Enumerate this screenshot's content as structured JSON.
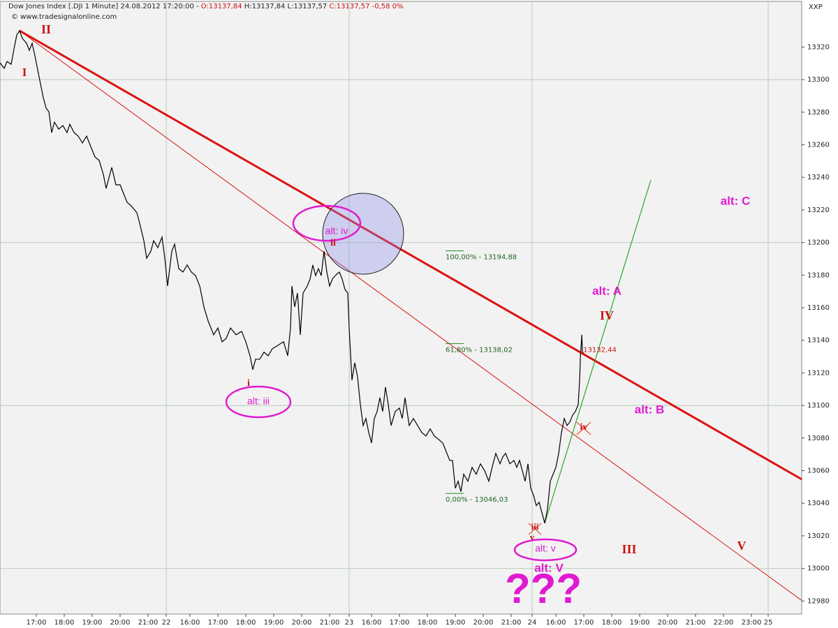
{
  "header": [
    "Dow Jones Index [.DJI 1 Minute] 24.08.2012 17:20:00 -",
    "O:13137,84",
    "H:13137,84 L:13137,57",
    "C:13137,57 -0,58 0%"
  ],
  "copyright": "© www.tradesignalonline.com",
  "corner_label": "XXP",
  "annotations": [
    "II",
    "I",
    "i",
    "alt: iii",
    "alt: iv",
    "ii",
    "iii",
    "v",
    "alt: v",
    "alt: V",
    "???",
    "iv",
    "alt: A",
    "IV",
    "alt: B",
    "alt: C",
    "III",
    "V"
  ],
  "chart_data": {
    "type": "line",
    "xlim": [
      0,
      28.7
    ],
    "ylim": [
      12972,
      13348
    ],
    "yticks": [
      12980,
      13000,
      13020,
      13040,
      13060,
      13080,
      13100,
      13120,
      13140,
      13160,
      13180,
      13200,
      13220,
      13240,
      13260,
      13280,
      13300,
      13320
    ],
    "ygrid": [
      13000,
      13100,
      13200,
      13300
    ],
    "xgrid": [
      5.95,
      12.5,
      19.05,
      27.5
    ],
    "xticks": [
      {
        "value": 1.3,
        "label": "17:00"
      },
      {
        "value": 2.3,
        "label": "18:00"
      },
      {
        "value": 3.3,
        "label": "19:00"
      },
      {
        "value": 4.3,
        "label": "20:00"
      },
      {
        "value": 5.3,
        "label": "21:00"
      },
      {
        "value": 5.95,
        "label": "22"
      },
      {
        "value": 6.8,
        "label": "16:00"
      },
      {
        "value": 7.8,
        "label": "17:00"
      },
      {
        "value": 8.8,
        "label": "18:00"
      },
      {
        "value": 9.8,
        "label": "19:00"
      },
      {
        "value": 10.8,
        "label": "20:00"
      },
      {
        "value": 11.8,
        "label": "21:00"
      },
      {
        "value": 12.5,
        "label": "23"
      },
      {
        "value": 13.3,
        "label": "16:00"
      },
      {
        "value": 14.3,
        "label": "17:00"
      },
      {
        "value": 15.3,
        "label": "18:00"
      },
      {
        "value": 16.3,
        "label": "19:00"
      },
      {
        "value": 17.3,
        "label": "20:00"
      },
      {
        "value": 18.3,
        "label": "21:00"
      },
      {
        "value": 19.05,
        "label": "24"
      },
      {
        "value": 19.9,
        "label": "16:00"
      },
      {
        "value": 20.9,
        "label": "17:00"
      },
      {
        "value": 21.9,
        "label": "18:00"
      },
      {
        "value": 22.9,
        "label": "19:00"
      },
      {
        "value": 23.9,
        "label": "20:00"
      },
      {
        "value": 24.9,
        "label": "21:00"
      },
      {
        "value": 25.9,
        "label": "22:00"
      },
      {
        "value": 26.9,
        "label": "23:00"
      },
      {
        "value": 27.5,
        "label": "25"
      }
    ],
    "fib_levels": [
      {
        "value": 13194.88,
        "label": "100,00% - 13194,88"
      },
      {
        "value": 13138.02,
        "label": "61,80% - 13138,02"
      },
      {
        "value": 13046.03,
        "label": "0,00% - 13046,03"
      }
    ],
    "fib_x": 15.95,
    "fib_color": "#228822",
    "price_marker": {
      "x": 20.83,
      "value": 13132.44,
      "label": "13132,44"
    },
    "series": [
      {
        "color": "#000000",
        "x": [
          0,
          0.15,
          0.25,
          0.4,
          0.5,
          0.6,
          0.7,
          0.8,
          0.95,
          1.05,
          1.15,
          1.25,
          1.35,
          1.45,
          1.55,
          1.65,
          1.75,
          1.85,
          1.95,
          2.1,
          2.25,
          2.4,
          2.5,
          2.65,
          2.8,
          2.95,
          3.1,
          3.25,
          3.4,
          3.55,
          3.7,
          3.8,
          3.9,
          4.0,
          4.15,
          4.3,
          4.4,
          4.55,
          4.7,
          4.9,
          5.0,
          5.15,
          5.25,
          5.4,
          5.5,
          5.65,
          5.8,
          5.9,
          6.0,
          6.15,
          6.25,
          6.4,
          6.55,
          6.7,
          6.85,
          7.0,
          7.15,
          7.3,
          7.45,
          7.65,
          7.8,
          7.95,
          8.1,
          8.25,
          8.45,
          8.65,
          8.8,
          8.95,
          9.05,
          9.15,
          9.3,
          9.45,
          9.6,
          9.75,
          9.95,
          10.15,
          10.3,
          10.4,
          10.45,
          10.55,
          10.65,
          10.75,
          10.85,
          11.0,
          11.1,
          11.2,
          11.3,
          11.4,
          11.5,
          11.6,
          11.7,
          11.8,
          11.9,
          12.0,
          12.15,
          12.25,
          12.35,
          12.45,
          12.5,
          12.6,
          12.7,
          12.8,
          12.9,
          13.0,
          13.1,
          13.2,
          13.3,
          13.4,
          13.5,
          13.6,
          13.7,
          13.8,
          13.9,
          14.0,
          14.15,
          14.3,
          14.4,
          14.5,
          14.65,
          14.8,
          14.95,
          15.1,
          15.25,
          15.4,
          15.55,
          15.7,
          15.85,
          16.0,
          16.1,
          16.2,
          16.3,
          16.4,
          16.5,
          16.6,
          16.75,
          16.9,
          17.05,
          17.2,
          17.35,
          17.5,
          17.65,
          17.75,
          17.9,
          18.0,
          18.1,
          18.25,
          18.4,
          18.5,
          18.6,
          18.7,
          18.8,
          18.9,
          19.0,
          19.1,
          19.2,
          19.3,
          19.4,
          19.5,
          19.6,
          19.7,
          19.8,
          19.9,
          20.0,
          20.1,
          20.2,
          20.3,
          20.4,
          20.5,
          20.6,
          20.7,
          20.75,
          20.78,
          20.83,
          20.85
        ],
        "values": [
          13310.3,
          13306.9,
          13311.1,
          13309.4,
          13318.8,
          13327.4,
          13330.0,
          13325.3,
          13322.3,
          13318.0,
          13322.3,
          13314.6,
          13306.0,
          13297.4,
          13288.9,
          13282.5,
          13280.3,
          13267.5,
          13273.9,
          13269.6,
          13271.8,
          13267.5,
          13272.6,
          13267.5,
          13265.3,
          13261.1,
          13265.3,
          13258.9,
          13252.5,
          13250.4,
          13241.8,
          13233.2,
          13239.7,
          13246.1,
          13235.4,
          13235.4,
          13231.1,
          13224.7,
          13222.5,
          13218.3,
          13211.8,
          13201.1,
          13190.4,
          13194.7,
          13201.1,
          13196.9,
          13203.3,
          13190.4,
          13173.3,
          13194.7,
          13199.0,
          13184.0,
          13181.9,
          13186.2,
          13181.9,
          13179.7,
          13173.3,
          13160.5,
          13151.9,
          13143.4,
          13147.6,
          13139.1,
          13141.2,
          13147.6,
          13143.4,
          13145.5,
          13139.1,
          13130.5,
          13122.0,
          13128.4,
          13128.4,
          13132.7,
          13130.5,
          13134.8,
          13136.9,
          13139.1,
          13130.5,
          13147.6,
          13173.3,
          13160.5,
          13169.0,
          13143.4,
          13169.0,
          13173.3,
          13177.6,
          13186.2,
          13179.7,
          13184.0,
          13179.7,
          13194.7,
          13181.9,
          13173.3,
          13177.6,
          13179.7,
          13181.9,
          13177.6,
          13171.2,
          13169.0,
          13147.6,
          13115.5,
          13126.2,
          13117.7,
          13100.6,
          13087.7,
          13092.0,
          13083.4,
          13077.0,
          13092.0,
          13096.3,
          13104.8,
          13096.3,
          13111.3,
          13100.6,
          13087.7,
          13096.3,
          13098.4,
          13092.0,
          13104.8,
          13087.7,
          13092.0,
          13087.7,
          13083.4,
          13081.3,
          13085.6,
          13081.3,
          13079.2,
          13077.0,
          13070.6,
          13066.3,
          13066.3,
          13049.2,
          13053.5,
          13047.1,
          13057.8,
          13053.5,
          13062.0,
          13057.8,
          13064.2,
          13059.9,
          13053.5,
          13064.2,
          13070.6,
          13064.2,
          13068.5,
          13070.6,
          13064.2,
          13066.3,
          13062.0,
          13066.3,
          13059.9,
          13053.5,
          13064.2,
          13049.2,
          13044.9,
          13038.5,
          13040.6,
          13034.2,
          13027.8,
          13036.4,
          13053.5,
          13057.8,
          13062.0,
          13070.6,
          13083.4,
          13092.0,
          13087.7,
          13089.9,
          13094.1,
          13096.3,
          13100.6,
          13115.5,
          13130.5,
          13143.4,
          13132.7
        ]
      }
    ]
  }
}
